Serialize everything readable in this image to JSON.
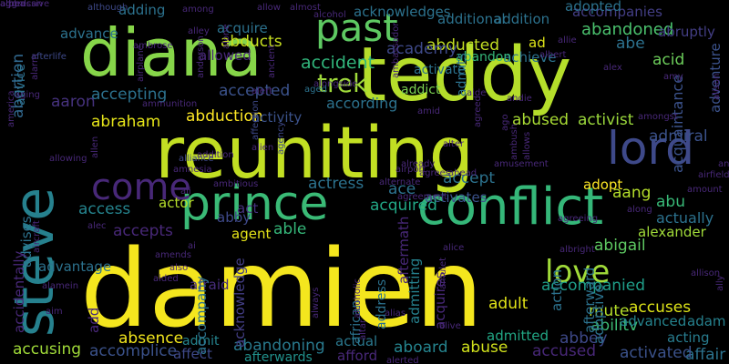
{
  "word_cloud": {
    "words": [
      {
        "text": "damien",
        "color": "#f4e61e"
      },
      {
        "text": "reuniting",
        "color": "#c2df23"
      },
      {
        "text": "teddy",
        "color": "#b5de2b"
      },
      {
        "text": "diana",
        "color": "#86d549"
      },
      {
        "text": "steve",
        "color": "#26818e"
      },
      {
        "text": "conflict",
        "color": "#35b779"
      },
      {
        "text": "prince",
        "color": "#3aba76"
      },
      {
        "text": "lord",
        "color": "#3e4989"
      },
      {
        "text": "past",
        "color": "#5ec962"
      },
      {
        "text": "come",
        "color": "#482878"
      },
      {
        "text": "love",
        "color": "#a0da39"
      },
      {
        "text": "trek",
        "color": "#9fda3a"
      },
      {
        "text": "abortion",
        "color": "#31688e"
      },
      {
        "text": "abandoned",
        "color": "#4ac16d"
      },
      {
        "text": "accompanied",
        "color": "#1f9e89"
      },
      {
        "text": "abducted",
        "color": "#c2df23"
      },
      {
        "text": "abducts",
        "color": "#c8e020"
      },
      {
        "text": "accident",
        "color": "#31b57b"
      },
      {
        "text": "academy",
        "color": "#3e4989"
      },
      {
        "text": "accepted",
        "color": "#3b528b"
      },
      {
        "text": "abduction",
        "color": "#fde725"
      },
      {
        "text": "abraham",
        "color": "#e5e419"
      },
      {
        "text": "acid",
        "color": "#6ccd5a"
      },
      {
        "text": "abe",
        "color": "#2c718e"
      },
      {
        "text": "accepting",
        "color": "#2c728e"
      },
      {
        "text": "aaron",
        "color": "#46327e"
      },
      {
        "text": "abused",
        "color": "#a8db34"
      },
      {
        "text": "activist",
        "color": "#9bd93c"
      },
      {
        "text": "admiral",
        "color": "#3b528b"
      },
      {
        "text": "abigail",
        "color": "#5ec962"
      },
      {
        "text": "abuse",
        "color": "#d0e11c"
      },
      {
        "text": "aboard",
        "color": "#25848e"
      },
      {
        "text": "absence",
        "color": "#f1e51d"
      },
      {
        "text": "abilitv",
        "color": "#3dbc74"
      },
      {
        "text": "actual",
        "color": "#2a788e"
      },
      {
        "text": "abandoning",
        "color": "#297a8e"
      },
      {
        "text": "accusing",
        "color": "#a0da39"
      },
      {
        "text": "accomplice",
        "color": "#3b528b"
      },
      {
        "text": "affair",
        "color": "#2c728e"
      },
      {
        "text": "accused",
        "color": "#482878"
      },
      {
        "text": "activated",
        "color": "#3b528b"
      },
      {
        "text": "accuses",
        "color": "#dde318"
      },
      {
        "text": "advanced",
        "color": "#25848e"
      },
      {
        "text": "adam",
        "color": "#26818e"
      },
      {
        "text": "mute",
        "color": "#b5de2b"
      },
      {
        "text": "adult",
        "color": "#e2e418"
      },
      {
        "text": "abbey",
        "color": "#3e4989"
      },
      {
        "text": "acting",
        "color": "#287c8e"
      },
      {
        "text": "abu",
        "color": "#38b977"
      },
      {
        "text": "actually",
        "color": "#2c728e"
      },
      {
        "text": "adopt",
        "color": "#fde725"
      },
      {
        "text": "aang",
        "color": "#b5de2b"
      },
      {
        "text": "alexander",
        "color": "#a0da39"
      },
      {
        "text": "activity",
        "color": "#3b528b"
      },
      {
        "text": "according",
        "color": "#2c728e"
      },
      {
        "text": "accept",
        "color": "#2c728e"
      },
      {
        "text": "ace",
        "color": "#2c728e"
      },
      {
        "text": "activates",
        "color": "#3b528b"
      },
      {
        "text": "actress",
        "color": "#2c728e"
      },
      {
        "text": "acquired",
        "color": "#22a785"
      },
      {
        "text": "accepts",
        "color": "#482878"
      },
      {
        "text": "able",
        "color": "#35b779"
      },
      {
        "text": "access",
        "color": "#25848e"
      },
      {
        "text": "actor",
        "color": "#b5de2b"
      },
      {
        "text": "act",
        "color": "#46327e"
      },
      {
        "text": "abby",
        "color": "#3e4989"
      },
      {
        "text": "agent",
        "color": "#e5e419"
      },
      {
        "text": "admitted",
        "color": "#22a785"
      },
      {
        "text": "admit",
        "color": "#25848e"
      },
      {
        "text": "afterwards",
        "color": "#21918c"
      },
      {
        "text": "afford",
        "color": "#482878"
      },
      {
        "text": "affect",
        "color": "#3e4989"
      },
      {
        "text": "address",
        "color": "#2c728e"
      },
      {
        "text": "african",
        "color": "#2c728e"
      },
      {
        "text": "afraid",
        "color": "#472d7b"
      },
      {
        "text": "advises",
        "color": "#2c728e"
      },
      {
        "text": "accidentally",
        "color": "#482878"
      },
      {
        "text": "advantage",
        "color": "#2c728e"
      },
      {
        "text": "add",
        "color": "#482878"
      },
      {
        "text": "accompany",
        "color": "#2c728e"
      },
      {
        "text": "acknowledge",
        "color": "#433e85"
      },
      {
        "text": "admitting",
        "color": "#26818e"
      },
      {
        "text": "aftermath",
        "color": "#482878"
      },
      {
        "text": "acquires",
        "color": "#482878"
      },
      {
        "text": "afterward",
        "color": "#2c728e"
      },
      {
        "text": "action",
        "color": "#2c728e"
      },
      {
        "text": "adoptive",
        "color": "#2c728e"
      },
      {
        "text": "acquaintance",
        "color": "#3b528b"
      },
      {
        "text": "adventure",
        "color": "#3b528b"
      },
      {
        "text": "accompanies",
        "color": "#433e85"
      },
      {
        "text": "abruptly",
        "color": "#433e85"
      },
      {
        "text": "adopted",
        "color": "#2c728e"
      },
      {
        "text": "ad",
        "color": "#dde318"
      },
      {
        "text": "achieve",
        "color": "#2c728e"
      },
      {
        "text": "activate",
        "color": "#2c728e"
      },
      {
        "text": "abandon",
        "color": "#35b779"
      },
      {
        "text": "addict",
        "color": "#7ad151"
      },
      {
        "text": "admits",
        "color": "#2c728e"
      },
      {
        "text": "aide",
        "color": "#482878"
      },
      {
        "text": "andie",
        "color": "#482878"
      },
      {
        "text": "allowed",
        "color": "#482878"
      },
      {
        "text": "acquire",
        "color": "#2c728e"
      },
      {
        "text": "advance",
        "color": "#2c728e"
      },
      {
        "text": "adding",
        "color": "#2c728e"
      },
      {
        "text": "acknowledges",
        "color": "#2c728e"
      },
      {
        "text": "additional",
        "color": "#2c728e"
      },
      {
        "text": "addition",
        "color": "#2c728e"
      },
      {
        "text": "advice",
        "color": "#2c728e"
      },
      {
        "text": "afterlife",
        "color": "#3e4989"
      },
      {
        "text": "alarm",
        "color": "#482878"
      },
      {
        "text": "although",
        "color": "#3e4989"
      },
      {
        "text": "among",
        "color": "#482878"
      },
      {
        "text": "allow",
        "color": "#482878"
      },
      {
        "text": "almost",
        "color": "#482878"
      },
      {
        "text": "alcohol",
        "color": "#482878"
      },
      {
        "text": "alley",
        "color": "#482878"
      },
      {
        "text": "allie",
        "color": "#482878"
      },
      {
        "text": "albert",
        "color": "#482878"
      },
      {
        "text": "alex",
        "color": "#482878"
      },
      {
        "text": "amy",
        "color": "#482878"
      },
      {
        "text": "ambrose",
        "color": "#482878"
      },
      {
        "text": "airplane",
        "color": "#482878"
      },
      {
        "text": "alone",
        "color": "#482878"
      },
      {
        "text": "alongside",
        "color": "#482878"
      },
      {
        "text": "ambassador",
        "color": "#482878"
      },
      {
        "text": "aged",
        "color": "#2c728e"
      },
      {
        "text": "ancient",
        "color": "#482878"
      },
      {
        "text": "alert",
        "color": "#482878"
      },
      {
        "text": "anderson",
        "color": "#482878"
      },
      {
        "text": "aging",
        "color": "#482878"
      },
      {
        "text": "ammunition",
        "color": "#482878"
      },
      {
        "text": "amid",
        "color": "#482878"
      },
      {
        "text": "amongst",
        "color": "#482878"
      },
      {
        "text": "alison",
        "color": "#482878"
      },
      {
        "text": "andrea",
        "color": "#482878"
      },
      {
        "text": "airfield",
        "color": "#482878"
      },
      {
        "text": "amount",
        "color": "#482878"
      },
      {
        "text": "alter",
        "color": "#482878"
      },
      {
        "text": "amusement",
        "color": "#482878"
      },
      {
        "text": "ahead",
        "color": "#482878"
      },
      {
        "text": "agrees",
        "color": "#482878"
      },
      {
        "text": "already",
        "color": "#482878"
      },
      {
        "text": "airport",
        "color": "#482878"
      },
      {
        "text": "ago",
        "color": "#482878"
      },
      {
        "text": "agreed",
        "color": "#482878"
      },
      {
        "text": "allows",
        "color": "#482878"
      },
      {
        "text": "ambush",
        "color": "#482878"
      },
      {
        "text": "agency",
        "color": "#3e4989"
      },
      {
        "text": "affection",
        "color": "#3e4989"
      },
      {
        "text": "alliance",
        "color": "#3e4989"
      },
      {
        "text": "addition",
        "color": "#482878"
      },
      {
        "text": "allowing",
        "color": "#482878"
      },
      {
        "text": "amnesia",
        "color": "#482878"
      },
      {
        "text": "alien",
        "color": "#482878"
      },
      {
        "text": "america",
        "color": "#482878"
      },
      {
        "text": "allen",
        "color": "#482878"
      },
      {
        "text": "alec",
        "color": "#482878"
      },
      {
        "text": "ali",
        "color": "#482878"
      },
      {
        "text": "ambitious",
        "color": "#482878"
      },
      {
        "text": "alternate",
        "color": "#482878"
      },
      {
        "text": "agreement",
        "color": "#482878"
      },
      {
        "text": "along",
        "color": "#482878"
      },
      {
        "text": "agreeing",
        "color": "#482878"
      },
      {
        "text": "albright",
        "color": "#482878"
      },
      {
        "text": "alice",
        "color": "#482878"
      },
      {
        "text": "allison",
        "color": "#482878"
      },
      {
        "text": "ally",
        "color": "#482878"
      },
      {
        "text": "ai",
        "color": "#482878"
      },
      {
        "text": "alamein",
        "color": "#482878"
      },
      {
        "text": "aircraft",
        "color": "#482878"
      },
      {
        "text": "aim",
        "color": "#482878"
      },
      {
        "text": "amends",
        "color": "#482878"
      },
      {
        "text": "also",
        "color": "#482878"
      },
      {
        "text": "aided",
        "color": "#482878"
      },
      {
        "text": "always",
        "color": "#482878"
      },
      {
        "text": "alcoholic",
        "color": "#482878"
      },
      {
        "text": "alias",
        "color": "#482878"
      },
      {
        "text": "altar",
        "color": "#482878"
      },
      {
        "text": "alive",
        "color": "#482878"
      },
      {
        "text": "alerted",
        "color": "#482878"
      },
      {
        "text": "amulet",
        "color": "#482878"
      },
      {
        "text": "al",
        "color": "#482878"
      },
      {
        "text": "american",
        "color": "#482878"
      },
      {
        "text": "aggressive",
        "color": "#482878"
      },
      {
        "text": "alfred",
        "color": "#482878"
      },
      {
        "text": "alpha",
        "color": "#482878"
      }
    ]
  }
}
